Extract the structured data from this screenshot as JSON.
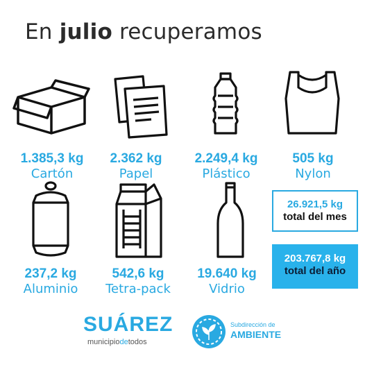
{
  "title": {
    "prefix": "En",
    "bold": "julio",
    "suffix": "recuperamos"
  },
  "items": [
    {
      "amount": "1.385,3 kg",
      "label": "Cartón",
      "icon": "cardboard-box-icon"
    },
    {
      "amount": "2.362 kg",
      "label": "Papel",
      "icon": "paper-sheets-icon"
    },
    {
      "amount": "2.249,4 kg",
      "label": "Plástico",
      "icon": "plastic-bottle-icon"
    },
    {
      "amount": "505 kg",
      "label": "Nylon",
      "icon": "plastic-bag-icon"
    },
    {
      "amount": "237,2 kg",
      "label": "Aluminio",
      "icon": "aluminum-can-icon"
    },
    {
      "amount": "542,6 kg",
      "label": "Tetra-pack",
      "icon": "tetra-pack-icon"
    },
    {
      "amount": "19.640 kg",
      "label": "Vidrio",
      "icon": "glass-bottle-icon"
    }
  ],
  "totals": {
    "month_value": "26.921,5 kg",
    "month_label": "total del mes",
    "year_value": "203.767,8 kg",
    "year_label": "total del año"
  },
  "footer": {
    "logo_name": "SUÁREZ",
    "logo_sub_a": "municipio",
    "logo_sub_b": "de",
    "logo_sub_c": "todos",
    "dept_line1": "Subdirección de",
    "dept_line2": "AMBIENTE"
  },
  "colors": {
    "accent": "#29a9e1",
    "total_year_bg": "#29b2eb",
    "text_dark": "#2b2b2b"
  }
}
